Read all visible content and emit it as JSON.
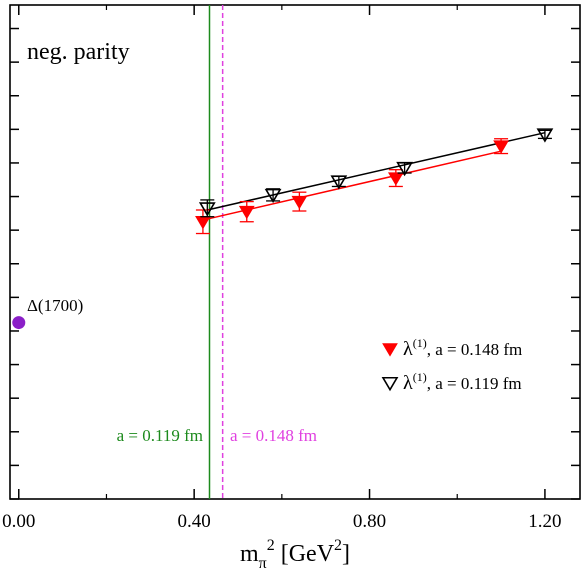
{
  "chart_data": {
    "type": "scatter",
    "title": "neg. parity",
    "xlabel": {
      "base": "m",
      "sub": "π",
      "sup": "2",
      "unit_open": " [GeV",
      "unit_sup": "2",
      "unit_close": "]"
    },
    "ylabel": "",
    "xlim": [
      -0.02,
      1.28
    ],
    "ylim": [
      0,
      14.7
    ],
    "xticks": [
      0.0,
      0.4,
      0.8,
      1.2
    ],
    "xtick_labels": [
      "0.00",
      "0.40",
      "0.80",
      "1.20"
    ],
    "yticks": [
      0,
      1,
      2,
      3,
      4,
      5,
      6,
      7,
      8,
      9,
      10,
      11,
      12,
      13,
      14
    ],
    "grid": false,
    "series": [
      {
        "key": "a148",
        "name": "λ",
        "name_sup": "(1)",
        "name_rest": ", a = 0.148 fm",
        "marker": "filled-triangle-down",
        "color": "#ff0000",
        "x": [
          0.42,
          0.52,
          0.64,
          0.86,
          1.1
        ],
        "y": [
          8.25,
          8.55,
          8.85,
          9.55,
          10.5
        ],
        "yerr": [
          0.35,
          0.3,
          0.28,
          0.25,
          0.22
        ],
        "fit": {
          "x": [
            0.42,
            1.1
          ],
          "y": [
            8.3,
            10.35
          ]
        }
      },
      {
        "key": "a119",
        "name": "λ",
        "name_sup": "(1)",
        "name_rest": ", a = 0.119 fm",
        "marker": "open-triangle-down",
        "color": "#000000",
        "x": [
          0.43,
          0.58,
          0.73,
          0.88,
          1.2
        ],
        "y": [
          8.65,
          9.05,
          9.45,
          9.85,
          10.85
        ],
        "yerr": [
          0.25,
          0.18,
          0.15,
          0.15,
          0.12
        ],
        "fit": {
          "x": [
            0.43,
            1.2
          ],
          "y": [
            8.6,
            10.9
          ]
        }
      }
    ],
    "reference_point": {
      "label": "Δ(1700)",
      "x": 0.0,
      "y": 5.25,
      "color": "#8b1fc8"
    },
    "vertical_lines": [
      {
        "label": "a = 0.119 fm",
        "x": 0.435,
        "color": "#1c8a1c",
        "style": "solid"
      },
      {
        "label": "a = 0.148 fm",
        "x": 0.465,
        "color": "#e040e0",
        "style": "dashed"
      }
    ],
    "legend_position": "bottom-right"
  }
}
